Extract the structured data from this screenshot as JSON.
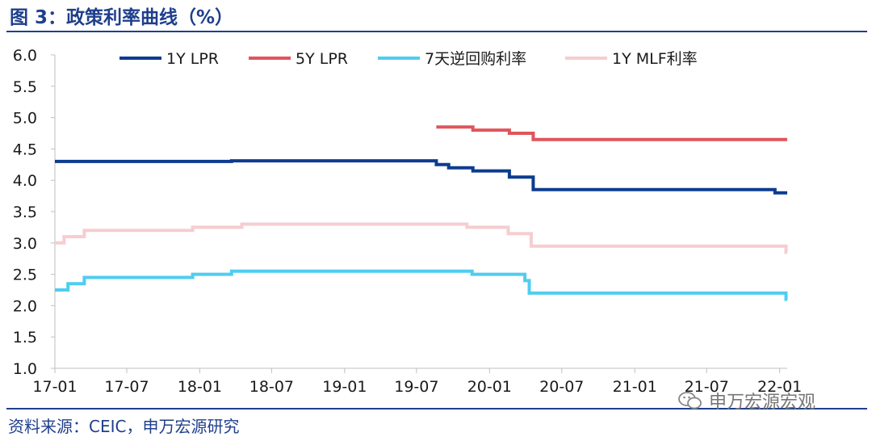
{
  "title": "图 3：政策利率曲线（%）",
  "source": "资料来源：CEIC，申万宏源研究",
  "watermark": "申万宏源宏观",
  "chart_data": {
    "type": "line",
    "step": true,
    "xlabel": "",
    "ylabel": "",
    "ylim": [
      1.0,
      6.0
    ],
    "y_ticks": [
      "1.0",
      "1.5",
      "2.0",
      "2.5",
      "3.0",
      "3.5",
      "4.0",
      "4.5",
      "5.0",
      "5.5",
      "6.0"
    ],
    "x_ticks": [
      "17-01",
      "17-07",
      "18-01",
      "18-07",
      "19-01",
      "19-07",
      "20-01",
      "20-07",
      "21-01",
      "21-07",
      "22-01"
    ],
    "xlim": [
      "2017-01-01",
      "2022-01-20"
    ],
    "grid": false,
    "legend_position": "top",
    "series": [
      {
        "name": "1Y LPR",
        "color": "#0d3c8f",
        "points": [
          [
            "2017-01-01",
            4.3
          ],
          [
            "2018-03-22",
            4.31
          ],
          [
            "2019-08-20",
            4.25
          ],
          [
            "2019-09-20",
            4.2
          ],
          [
            "2019-11-20",
            4.15
          ],
          [
            "2020-02-20",
            4.05
          ],
          [
            "2020-04-20",
            3.85
          ],
          [
            "2021-12-20",
            3.8
          ],
          [
            "2022-01-20",
            3.8
          ]
        ]
      },
      {
        "name": "5Y LPR",
        "color": "#e0555a",
        "points": [
          [
            "2019-08-20",
            4.85
          ],
          [
            "2019-11-20",
            4.8
          ],
          [
            "2020-02-20",
            4.75
          ],
          [
            "2020-04-20",
            4.65
          ],
          [
            "2022-01-20",
            4.65
          ]
        ]
      },
      {
        "name": "7天逆回购利率",
        "color": "#4fcdf0",
        "points": [
          [
            "2017-01-01",
            2.25
          ],
          [
            "2017-02-03",
            2.35
          ],
          [
            "2017-03-16",
            2.45
          ],
          [
            "2017-12-14",
            2.5
          ],
          [
            "2018-03-22",
            2.55
          ],
          [
            "2019-11-18",
            2.5
          ],
          [
            "2020-03-30",
            2.4
          ],
          [
            "2020-04-10",
            2.2
          ],
          [
            "2022-01-17",
            2.1
          ],
          [
            "2022-01-20",
            2.1
          ]
        ]
      },
      {
        "name": "1Y MLF利率",
        "color": "#f6cdd0",
        "points": [
          [
            "2017-01-01",
            3.0
          ],
          [
            "2017-01-24",
            3.1
          ],
          [
            "2017-03-16",
            3.2
          ],
          [
            "2017-12-14",
            3.25
          ],
          [
            "2018-04-17",
            3.3
          ],
          [
            "2019-11-05",
            3.25
          ],
          [
            "2020-02-17",
            3.15
          ],
          [
            "2020-04-15",
            2.95
          ],
          [
            "2022-01-17",
            2.85
          ],
          [
            "2022-01-20",
            2.85
          ]
        ]
      }
    ]
  }
}
